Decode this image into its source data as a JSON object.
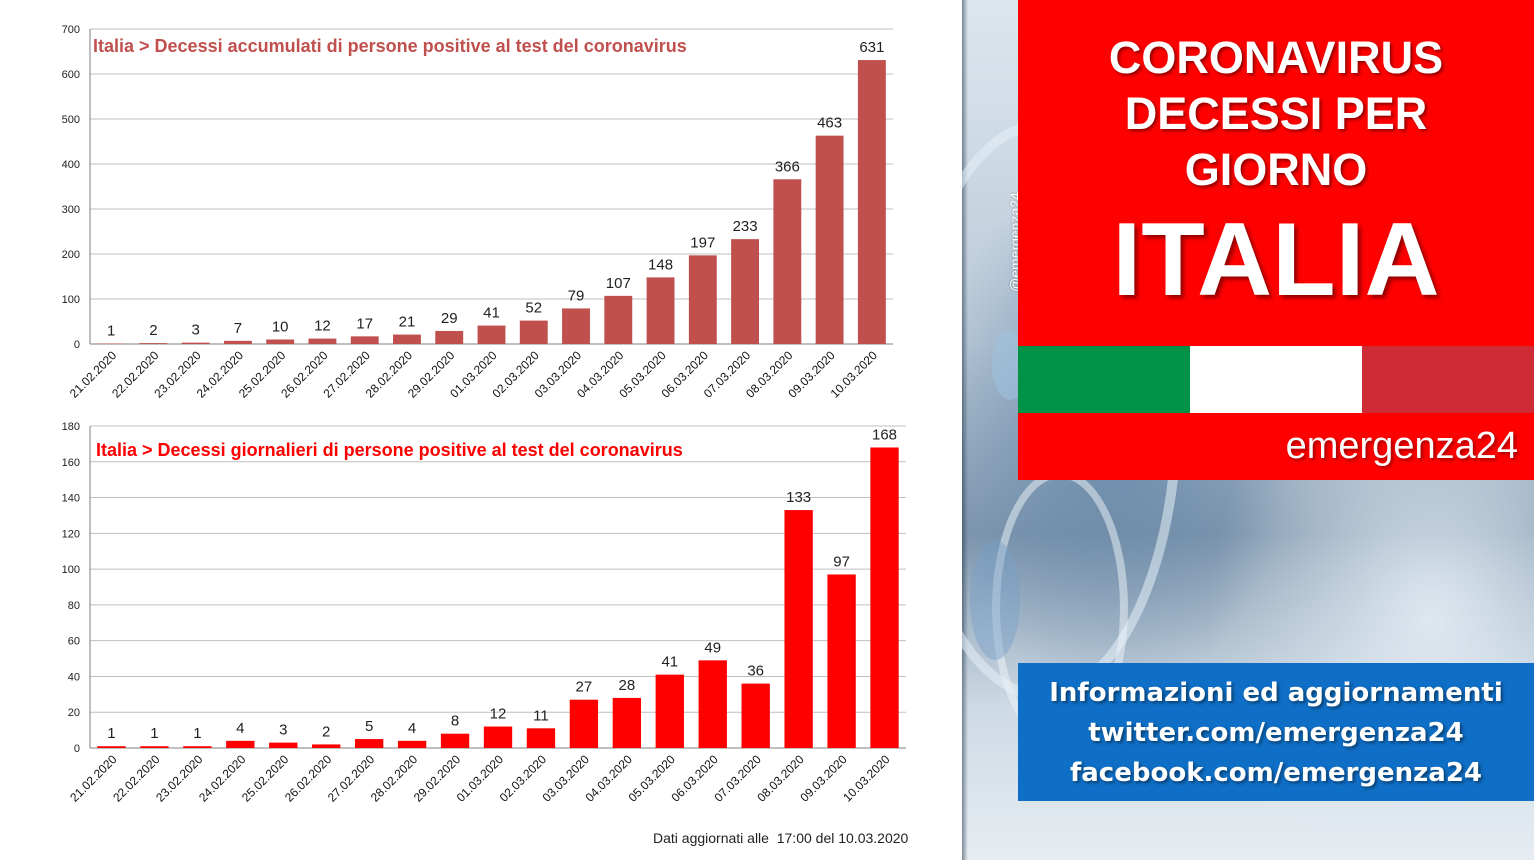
{
  "chart_data": [
    {
      "type": "bar",
      "title": "Italia > Decessi accumulati di persone positive al test del coronavirus",
      "categories": [
        "21.02.2020",
        "22.02.2020",
        "23.02.2020",
        "24.02.2020",
        "25.02.2020",
        "26.02.2020",
        "27.02.2020",
        "28.02.2020",
        "29.02.2020",
        "01.03.2020",
        "02.03.2020",
        "03.03.2020",
        "04.03.2020",
        "05.03.2020",
        "06.03.2020",
        "07.03.2020",
        "08.03.2020",
        "09.03.2020",
        "10.03.2020"
      ],
      "values": [
        1,
        2,
        3,
        7,
        10,
        12,
        17,
        21,
        29,
        41,
        52,
        79,
        107,
        148,
        197,
        233,
        366,
        463,
        631
      ],
      "ylim": [
        0,
        700
      ],
      "yticks": [
        0,
        100,
        200,
        300,
        400,
        500,
        600,
        700
      ],
      "xlabel": "",
      "ylabel": "",
      "grid": true,
      "bar_color": "#c0504d",
      "title_color": "#c0504d"
    },
    {
      "type": "bar",
      "title": "Italia > Decessi giornalieri di persone positive al test del coronavirus",
      "categories": [
        "21.02.2020",
        "22.02.2020",
        "23.02.2020",
        "24.02.2020",
        "25.02.2020",
        "26.02.2020",
        "27.02.2020",
        "28.02.2020",
        "29.02.2020",
        "01.03.2020",
        "02.03.2020",
        "03.03.2020",
        "04.03.2020",
        "05.03.2020",
        "06.03.2020",
        "07.03.2020",
        "08.03.2020",
        "09.03.2020",
        "10.03.2020"
      ],
      "values": [
        1,
        1,
        1,
        4,
        3,
        2,
        5,
        4,
        8,
        12,
        11,
        27,
        28,
        41,
        49,
        36,
        133,
        97,
        168
      ],
      "ylim": [
        0,
        180
      ],
      "yticks": [
        0,
        20,
        40,
        60,
        80,
        100,
        120,
        140,
        160,
        180
      ],
      "xlabel": "",
      "ylabel": "",
      "grid": true,
      "bar_color": "#ff0000",
      "title_color": "#ff0000"
    }
  ],
  "footnote": "Dati aggiornati alle  17:00 del 10.03.2020",
  "side": {
    "watermark": "@emergenza24",
    "title_lines": [
      "CORONAVIRUS",
      "DECESSI PER",
      "GIORNO"
    ],
    "country": "ITALIA",
    "brand": "emergenza24",
    "info_lines": [
      "Informazioni ed aggiornamenti",
      "twitter.com/emergenza24",
      "facebook.com/emergenza24"
    ],
    "flag_colors": [
      "#009246",
      "#ffffff",
      "#ce2b37"
    ],
    "title_bg": "#ff0000",
    "info_bg": "#0f6fc6"
  }
}
